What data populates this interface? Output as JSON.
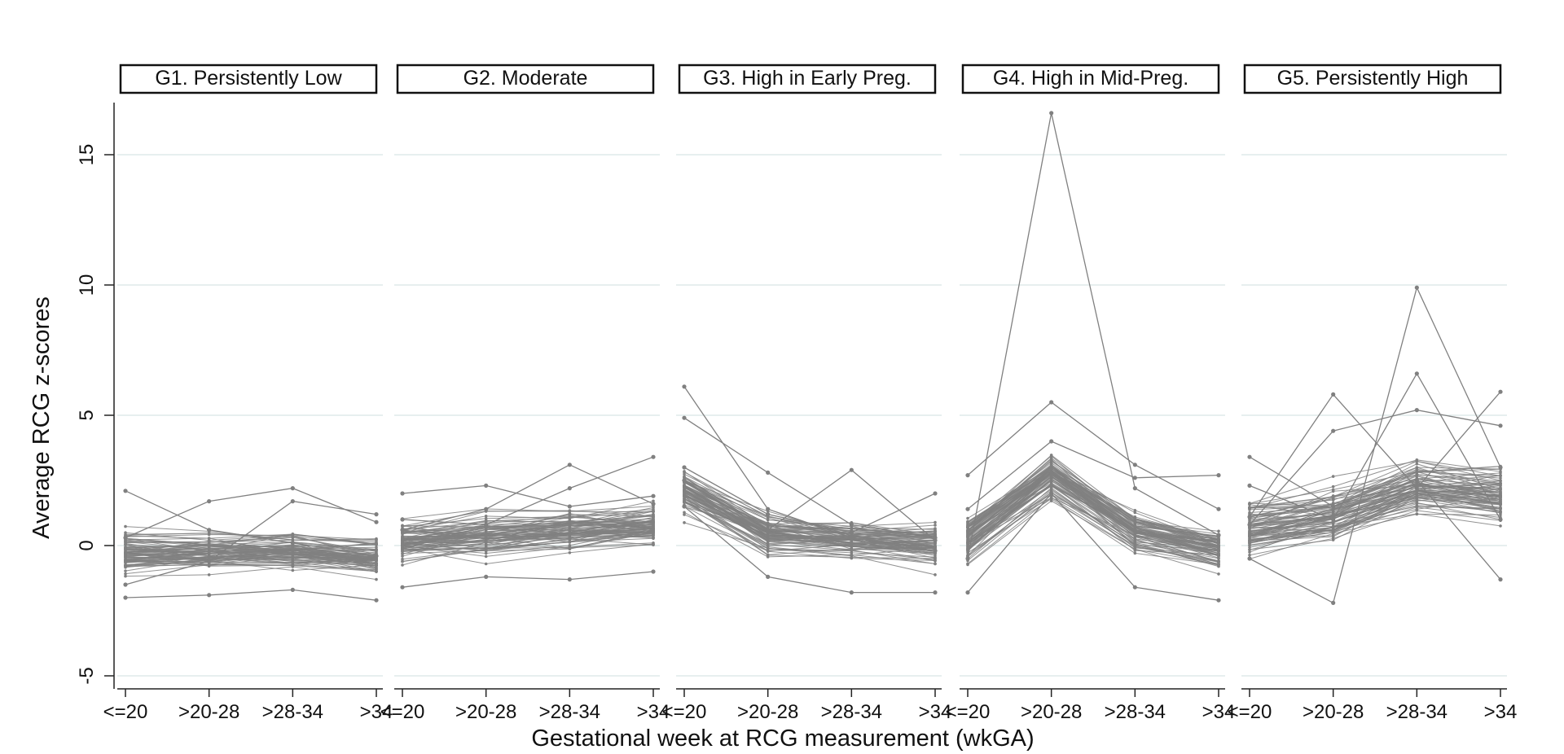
{
  "chart_data": {
    "type": "line",
    "ylabel": "Average RCG z-scores",
    "xlabel": "Gestational week at RCG measurement (wkGA)",
    "categories": [
      "<=20",
      ">20-28",
      ">28-34",
      ">34"
    ],
    "ylim": [
      -5.5,
      17
    ],
    "yticks": [
      -5,
      0,
      5,
      10,
      15
    ],
    "grid": true,
    "series_color": "#808080",
    "grid_color": "#dfeaea",
    "panels": [
      {
        "title": "G1. Persistently Low",
        "band": {
          "center": [
            -0.3,
            -0.3,
            -0.25,
            -0.5
          ],
          "spread": [
            0.9,
            0.8,
            0.75,
            0.8
          ]
        },
        "outliers": [
          [
            2.1,
            0.6,
            0.1,
            -0.4
          ],
          [
            -2.0,
            -1.9,
            -1.7,
            -2.1
          ],
          [
            0.3,
            1.7,
            2.2,
            0.9
          ],
          [
            -1.5,
            -0.6,
            1.7,
            1.2
          ]
        ]
      },
      {
        "title": "G2. Moderate",
        "band": {
          "center": [
            0.2,
            0.4,
            0.6,
            0.8
          ],
          "spread": [
            0.85,
            0.85,
            0.9,
            0.8
          ]
        },
        "outliers": [
          [
            2.0,
            2.3,
            1.5,
            1.9
          ],
          [
            -1.6,
            -1.2,
            -1.3,
            -1.0
          ],
          [
            0.6,
            1.4,
            3.1,
            1.6
          ],
          [
            1.0,
            0.8,
            2.2,
            3.4
          ]
        ]
      },
      {
        "title": "G3. High in Early Preg.",
        "band": {
          "center": [
            2.1,
            0.4,
            0.2,
            0.0
          ],
          "spread": [
            0.8,
            0.8,
            0.75,
            0.8
          ]
        },
        "outliers": [
          [
            6.1,
            1.4,
            0.3,
            -0.2
          ],
          [
            4.9,
            2.8,
            0.8,
            0.3
          ],
          [
            1.5,
            -1.2,
            -1.8,
            -1.8
          ],
          [
            2.5,
            0.6,
            2.9,
            0.2
          ],
          [
            3.0,
            1.2,
            0.5,
            2.0
          ]
        ]
      },
      {
        "title": "G4. High in Mid-Preg.",
        "band": {
          "center": [
            0.3,
            2.7,
            0.5,
            -0.1
          ],
          "spread": [
            1.0,
            0.9,
            0.85,
            0.8
          ]
        },
        "outliers": [
          [
            -0.5,
            16.6,
            2.2,
            0.4
          ],
          [
            2.7,
            5.5,
            3.1,
            1.4
          ],
          [
            -1.8,
            2.0,
            -1.6,
            -2.1
          ],
          [
            1.4,
            4.0,
            2.6,
            2.7
          ]
        ]
      },
      {
        "title": "G5. Persistently High",
        "band": {
          "center": [
            0.6,
            1.1,
            2.2,
            1.9
          ],
          "spread": [
            1.0,
            1.0,
            1.0,
            1.2
          ]
        },
        "outliers": [
          [
            -0.5,
            -2.2,
            9.9,
            3.0
          ],
          [
            1.1,
            5.8,
            2.2,
            5.9
          ],
          [
            2.3,
            1.0,
            6.6,
            1.0
          ],
          [
            3.4,
            1.5,
            2.5,
            -1.3
          ],
          [
            0.8,
            4.4,
            5.2,
            4.6
          ]
        ]
      }
    ]
  }
}
